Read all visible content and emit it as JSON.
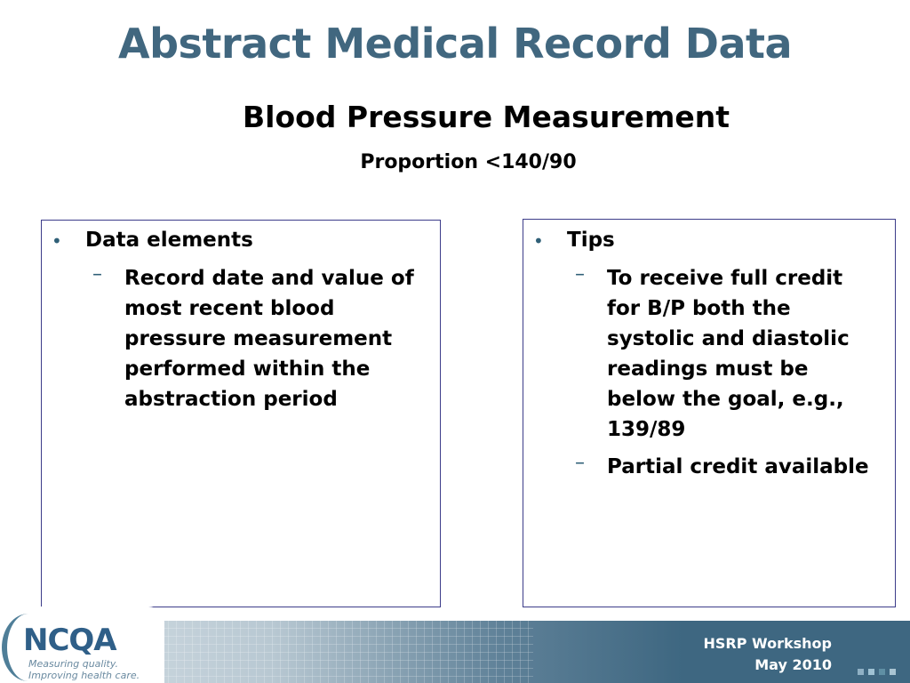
{
  "slide": {
    "title": "Abstract Medical Record Data",
    "subtitle": "Blood Pressure Measurement",
    "subsubtitle": "Proportion <140/90"
  },
  "left_box": {
    "heading": "Data elements",
    "items": [
      "Record date and value of most recent blood pressure measurement performed within the abstraction period"
    ]
  },
  "right_box": {
    "heading": "Tips",
    "items": [
      "To receive full credit for B/P both the systolic and diastolic readings must be below the goal, e.g., 139/89",
      "Partial credit available"
    ]
  },
  "footer": {
    "logo_text": "NCQA",
    "tagline_1": "Measuring quality.",
    "tagline_2": "Improving health care.",
    "line1": "HSRP Workshop",
    "line2": "May 2010"
  },
  "colors": {
    "title": "#41677f",
    "footer": "#3e6781",
    "bullet": "#2f5f77",
    "box_border": "#3c3c8a"
  }
}
